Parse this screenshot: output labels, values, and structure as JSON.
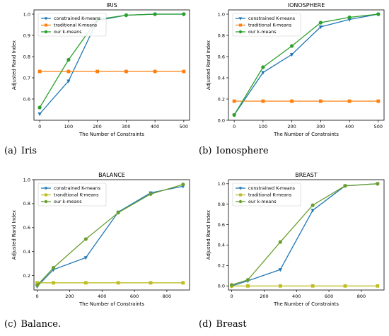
{
  "chart_data": [
    {
      "type": "line",
      "title": "IRIS",
      "xlabel": "The Number of Constraints",
      "ylabel": "Adjusted Rand Index",
      "caption_label": "(a)",
      "caption_text": "Iris",
      "xlim": [
        -20,
        520
      ],
      "ylim": [
        0.5,
        1.02
      ],
      "xticks": [
        0,
        100,
        200,
        300,
        400,
        500
      ],
      "yticks": [
        0.6,
        0.7,
        0.8,
        0.9,
        1.0
      ],
      "ytick_labels": [
        "0.6",
        "0.7",
        "0.8",
        "0.9",
        "1.0"
      ],
      "legend_position": "upper-left",
      "series": [
        {
          "name": "constrained K-means",
          "color": "#1f77b4",
          "marker": "triangle",
          "x": [
            0,
            100,
            200,
            300,
            400,
            500
          ],
          "y": [
            0.53,
            0.685,
            0.97,
            0.995,
            1.0,
            1.0
          ]
        },
        {
          "name": "traditional K-means",
          "color": "#ff7f0e",
          "marker": "square",
          "x": [
            0,
            100,
            200,
            300,
            400,
            500
          ],
          "y": [
            0.73,
            0.73,
            0.73,
            0.73,
            0.73,
            0.73
          ]
        },
        {
          "name": "our k-means",
          "color": "#2ca02c",
          "marker": "circle",
          "x": [
            0,
            100,
            200,
            300,
            400,
            500
          ],
          "y": [
            0.56,
            0.785,
            0.975,
            0.995,
            1.0,
            1.0
          ]
        }
      ]
    },
    {
      "type": "line",
      "title": "IONOSPHERE",
      "xlabel": "The Number of Constraints",
      "ylabel": "Adjusted Rand Index",
      "caption_label": "(b)",
      "caption_text": "Ionosphere",
      "xlim": [
        -20,
        520
      ],
      "ylim": [
        0.0,
        1.04
      ],
      "xticks": [
        0,
        100,
        200,
        300,
        400,
        500
      ],
      "yticks": [
        0.0,
        0.2,
        0.4,
        0.6,
        0.8,
        1.0
      ],
      "ytick_labels": [
        "0.0",
        "0.2",
        "0.4",
        "0.6",
        "0.8",
        "1.0"
      ],
      "legend_position": "upper-left",
      "series": [
        {
          "name": "constrained K-means",
          "color": "#1f77b4",
          "marker": "triangle",
          "x": [
            0,
            100,
            200,
            300,
            400,
            500
          ],
          "y": [
            0.05,
            0.45,
            0.62,
            0.88,
            0.95,
            1.0
          ]
        },
        {
          "name": "traditional K-means",
          "color": "#ff7f0e",
          "marker": "square",
          "x": [
            0,
            100,
            200,
            300,
            400,
            500
          ],
          "y": [
            0.18,
            0.18,
            0.18,
            0.18,
            0.18,
            0.18
          ]
        },
        {
          "name": "our k-means",
          "color": "#2ca02c",
          "marker": "circle",
          "x": [
            0,
            100,
            200,
            300,
            400,
            500
          ],
          "y": [
            0.05,
            0.5,
            0.7,
            0.92,
            0.97,
            1.0
          ]
        }
      ]
    },
    {
      "type": "line",
      "title": "BALANCE",
      "xlabel": "The Number of Constraints",
      "ylabel": "Adjusted Rand Index",
      "caption_label": "(c)",
      "caption_text": "Balance.",
      "xlim": [
        -20,
        940
      ],
      "ylim": [
        0.08,
        1.0
      ],
      "xticks": [
        0,
        200,
        400,
        600,
        800
      ],
      "yticks": [
        0.2,
        0.4,
        0.6,
        0.8,
        1.0
      ],
      "ytick_labels": [
        "0.2",
        "0.4",
        "0.6",
        "0.8",
        "1.0"
      ],
      "legend_position": "upper-left",
      "series": [
        {
          "name": "constrained K-means",
          "color": "#1f77b4",
          "marker": "triangle",
          "x": [
            0,
            100,
            300,
            500,
            700,
            900
          ],
          "y": [
            0.11,
            0.25,
            0.35,
            0.73,
            0.89,
            0.945
          ]
        },
        {
          "name": "trandtional K-means",
          "color": "#bcbd22",
          "marker": "square",
          "x": [
            0,
            100,
            300,
            500,
            700,
            900
          ],
          "y": [
            0.14,
            0.14,
            0.14,
            0.14,
            0.14,
            0.14
          ]
        },
        {
          "name": "our k-means",
          "color": "#6a9e2e",
          "marker": "circle",
          "x": [
            0,
            100,
            300,
            500,
            700,
            900
          ],
          "y": [
            0.12,
            0.265,
            0.505,
            0.725,
            0.88,
            0.96
          ]
        }
      ]
    },
    {
      "type": "line",
      "title": "BREAST",
      "xlabel": "The Number of Constraints",
      "ylabel": "Adjusted Rand Index",
      "caption_label": "(d)",
      "caption_text": "Breast",
      "xlim": [
        -20,
        940
      ],
      "ylim": [
        -0.04,
        1.04
      ],
      "xticks": [
        0,
        200,
        400,
        600,
        800
      ],
      "yticks": [
        0.0,
        0.2,
        0.4,
        0.6,
        0.8,
        1.0
      ],
      "ytick_labels": [
        "0.0",
        "0.2",
        "0.4",
        "0.6",
        "0.8",
        "1.0"
      ],
      "legend_position": "upper-left",
      "series": [
        {
          "name": "constrained K-means",
          "color": "#1f77b4",
          "marker": "triangle",
          "x": [
            0,
            100,
            300,
            500,
            700,
            900
          ],
          "y": [
            0.0,
            0.05,
            0.16,
            0.74,
            0.98,
            1.0
          ]
        },
        {
          "name": "traditional K-means",
          "color": "#bcbd22",
          "marker": "square",
          "x": [
            0,
            100,
            300,
            500,
            700,
            900
          ],
          "y": [
            0.0,
            0.0,
            0.0,
            0.0,
            0.0,
            0.0
          ]
        },
        {
          "name": "our k-means",
          "color": "#6a9e2e",
          "marker": "circle",
          "x": [
            0,
            100,
            300,
            500,
            700,
            900
          ],
          "y": [
            0.01,
            0.06,
            0.43,
            0.79,
            0.98,
            1.0
          ]
        }
      ]
    }
  ]
}
